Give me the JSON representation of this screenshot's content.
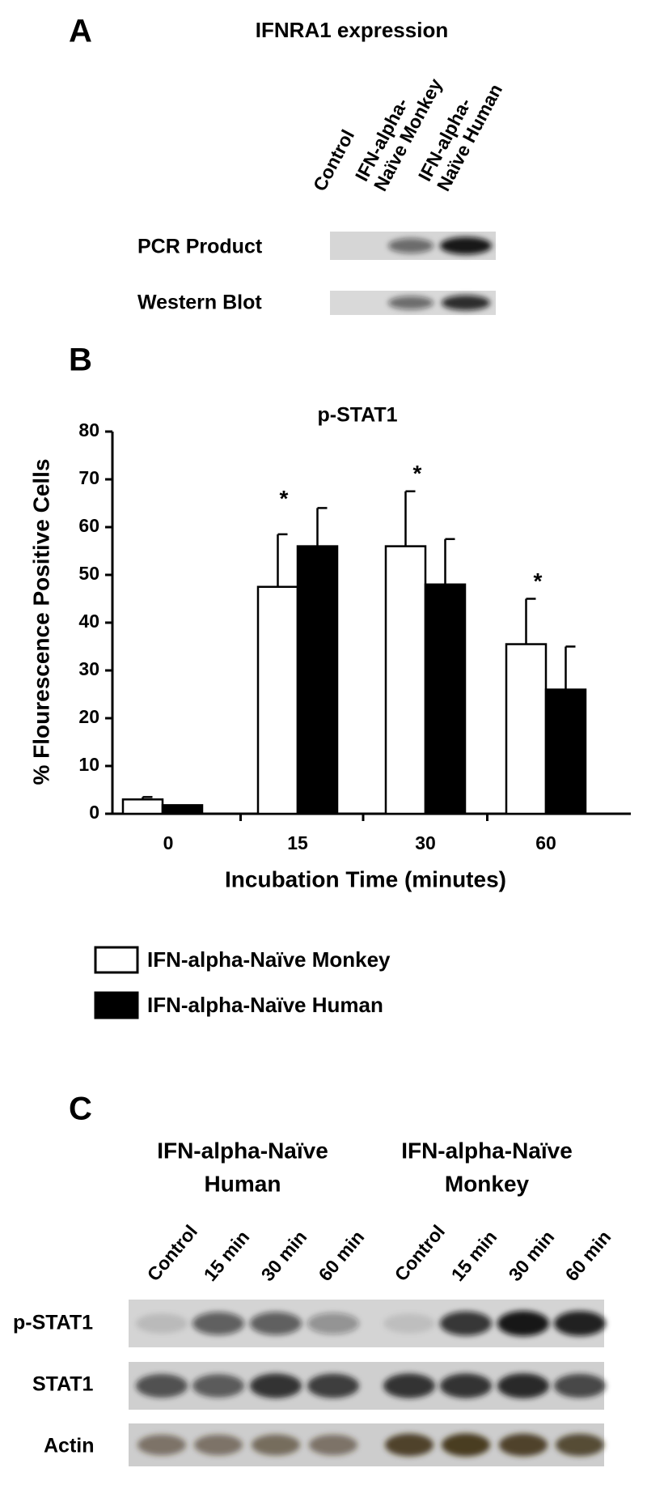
{
  "panel_a": {
    "letter": "A",
    "title": "IFNRA1 expression",
    "lanes": [
      [
        "Control"
      ],
      [
        "IFN-alpha-",
        "Naïve Monkey"
      ],
      [
        "IFN-alpha-",
        "Naïve Human"
      ]
    ],
    "rows": [
      "PCR Product",
      "Western Blot"
    ]
  },
  "panel_b_letter": "B",
  "chart_data": {
    "type": "bar",
    "title": "p-STAT1",
    "xlabel": "Incubation Time (minutes)",
    "ylabel": "% Flourescence Positive Cells",
    "categories": [
      "0",
      "15",
      "30",
      "60"
    ],
    "series": [
      {
        "name": "IFN-alpha-Naïve Monkey",
        "color": "#ffffff",
        "values": [
          3,
          47.5,
          56,
          35.5
        ],
        "errors": [
          0.5,
          11,
          11.5,
          9.5
        ]
      },
      {
        "name": "IFN-alpha-Naïve Human",
        "color": "#000000",
        "values": [
          1.8,
          56,
          48,
          26
        ],
        "errors": [
          0,
          8,
          9.5,
          9
        ]
      }
    ],
    "annotations": [
      {
        "text": "*",
        "x": "15"
      },
      {
        "text": "*",
        "x": "30"
      },
      {
        "text": "*",
        "x": "60"
      }
    ],
    "ylim": [
      0,
      80
    ],
    "yticks": [
      0,
      10,
      20,
      30,
      40,
      50,
      60,
      70,
      80
    ],
    "grid": false
  },
  "panel_c": {
    "letter": "C",
    "groups": [
      [
        "IFN-alpha-Naïve",
        "Human"
      ],
      [
        "IFN-alpha-Naïve",
        "Monkey"
      ]
    ],
    "lanes": [
      "Control",
      "15 min",
      "30 min",
      "60 min",
      "Control",
      "15 min",
      "30 min",
      "60 min"
    ],
    "rows": [
      "p-STAT1",
      "STAT1",
      "Actin"
    ]
  }
}
